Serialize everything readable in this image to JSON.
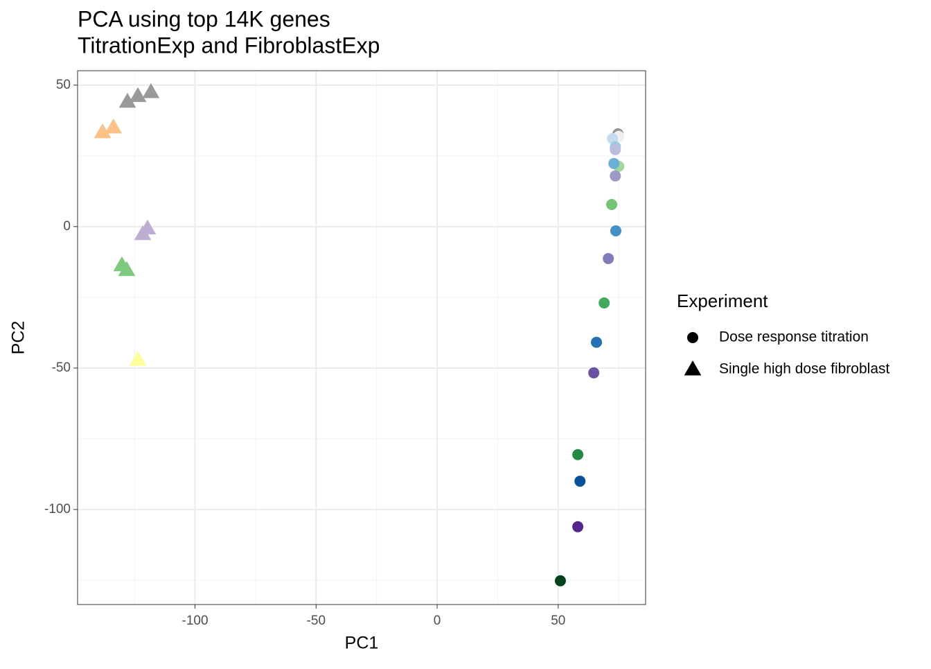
{
  "chart_data": {
    "type": "scatter",
    "title": "PCA using top 14K genes",
    "subtitle": "TitrationExp and FibroblastExp",
    "x_label": "PC1",
    "y_label": "PC2",
    "legend_title": "Experiment",
    "xlim": [
      -148.5,
      86.1
    ],
    "xticks": [
      -100,
      -50,
      0,
      50
    ],
    "xminor": [
      -125,
      -75,
      -25,
      25,
      75
    ],
    "ylim": [
      -133.6,
      55.1
    ],
    "yticks": [
      -100,
      -50,
      0,
      50
    ],
    "yminor": [
      -125,
      -75,
      -25,
      25
    ],
    "grid": true,
    "series": [
      {
        "name": "Dose response titration",
        "marker": "circle",
        "color": "#000000",
        "x": [
          74.7,
          75.0,
          72.4,
          73.6,
          73.6,
          75.0,
          73.0,
          73.6,
          72.1,
          73.8,
          70.7,
          69.0,
          65.8,
          64.7,
          58.1,
          59.0,
          58.1,
          50.9
        ],
        "values": [
          32.8,
          31.9,
          31.1,
          28.2,
          27.2,
          21.3,
          22.3,
          17.9,
          7.8,
          -1.5,
          -11.3,
          -27.0,
          -40.9,
          -51.7,
          -80.6,
          -90.0,
          -106.1,
          -125.2
        ],
        "colors": [
          "#969696",
          "#f0f0f0",
          "#c6dbef",
          "#9ecae1",
          "#bcbddc",
          "#a1d99b",
          "#6baed6",
          "#9e9ac8",
          "#74c476",
          "#4292c6",
          "#807dba",
          "#41ab5d",
          "#2171b5",
          "#6a51a3",
          "#238b45",
          "#08519c",
          "#54278f",
          "#00441b"
        ]
      },
      {
        "name": "Single high dose fibroblast",
        "marker": "triangle",
        "color": "#000000",
        "x": [
          -127.9,
          -123.6,
          -118.2,
          -138.2,
          -133.7,
          -119.6,
          -121.6,
          -130.2,
          -128.2,
          -123.6
        ],
        "values": [
          44.1,
          46.1,
          47.5,
          33.3,
          35.0,
          -0.7,
          -2.7,
          -13.7,
          -15.4,
          -47.1
        ],
        "colors": [
          "#999999",
          "#999999",
          "#999999",
          "#fdc086",
          "#fdc086",
          "#beaed4",
          "#beaed4",
          "#7fc97f",
          "#7fc97f",
          "#ffff99"
        ]
      }
    ]
  }
}
